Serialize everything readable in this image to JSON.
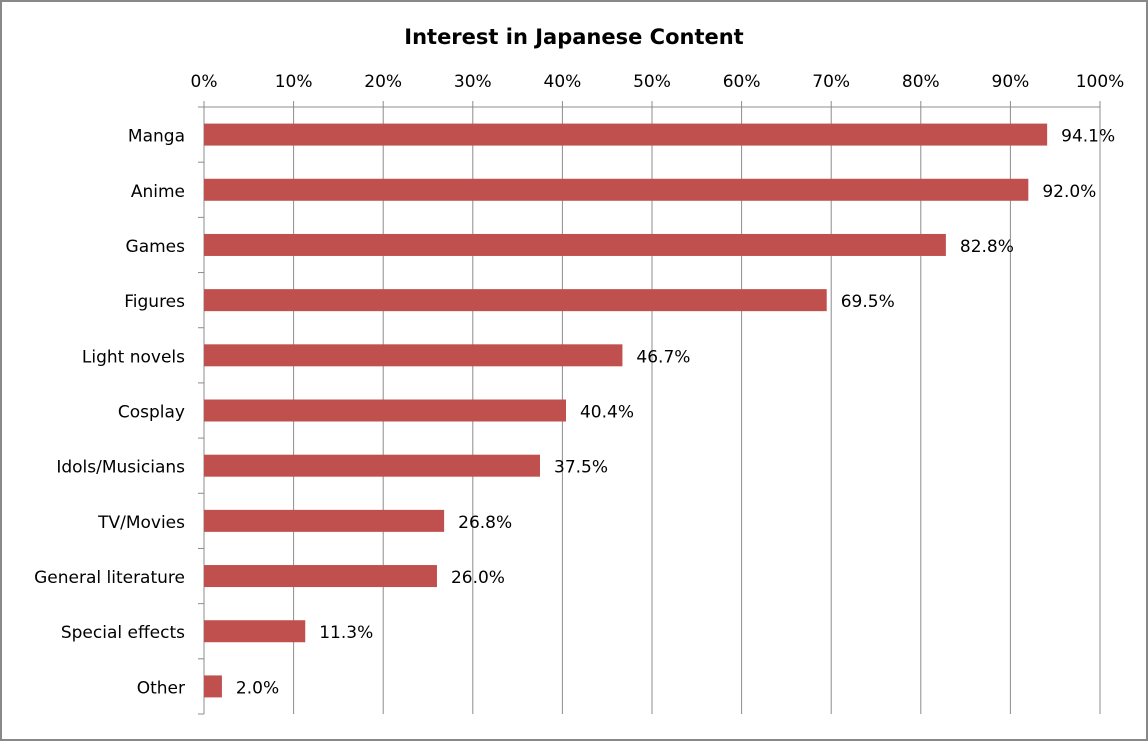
{
  "chart_data": {
    "type": "bar",
    "orientation": "horizontal",
    "title": "Interest in Japanese Content",
    "categories": [
      "Manga",
      "Anime",
      "Games",
      "Figures",
      "Light novels",
      "Cosplay",
      "Idols/Musicians",
      "TV/Movies",
      "General literature",
      "Special effects",
      "Other"
    ],
    "values": [
      94.1,
      92.0,
      82.8,
      69.5,
      46.7,
      40.4,
      37.5,
      26.8,
      26.0,
      11.3,
      2.0
    ],
    "value_labels": [
      "94.1%",
      "92.0%",
      "82.8%",
      "69.5%",
      "46.7%",
      "40.4%",
      "37.5%",
      "26.8%",
      "26.0%",
      "11.3%",
      "2.0%"
    ],
    "color": "#c0504d",
    "xlim": [
      0,
      100
    ],
    "xticks": [
      {
        "value": 0,
        "label": "0%"
      },
      {
        "value": 10,
        "label": "10%"
      },
      {
        "value": 20,
        "label": "20%"
      },
      {
        "value": 30,
        "label": "30%"
      },
      {
        "value": 40,
        "label": "40%"
      },
      {
        "value": 50,
        "label": "50%"
      },
      {
        "value": 60,
        "label": "60%"
      },
      {
        "value": 70,
        "label": "70%"
      },
      {
        "value": 80,
        "label": "80%"
      },
      {
        "value": 90,
        "label": "90%"
      },
      {
        "value": 100,
        "label": "100%"
      }
    ],
    "grid": true
  }
}
